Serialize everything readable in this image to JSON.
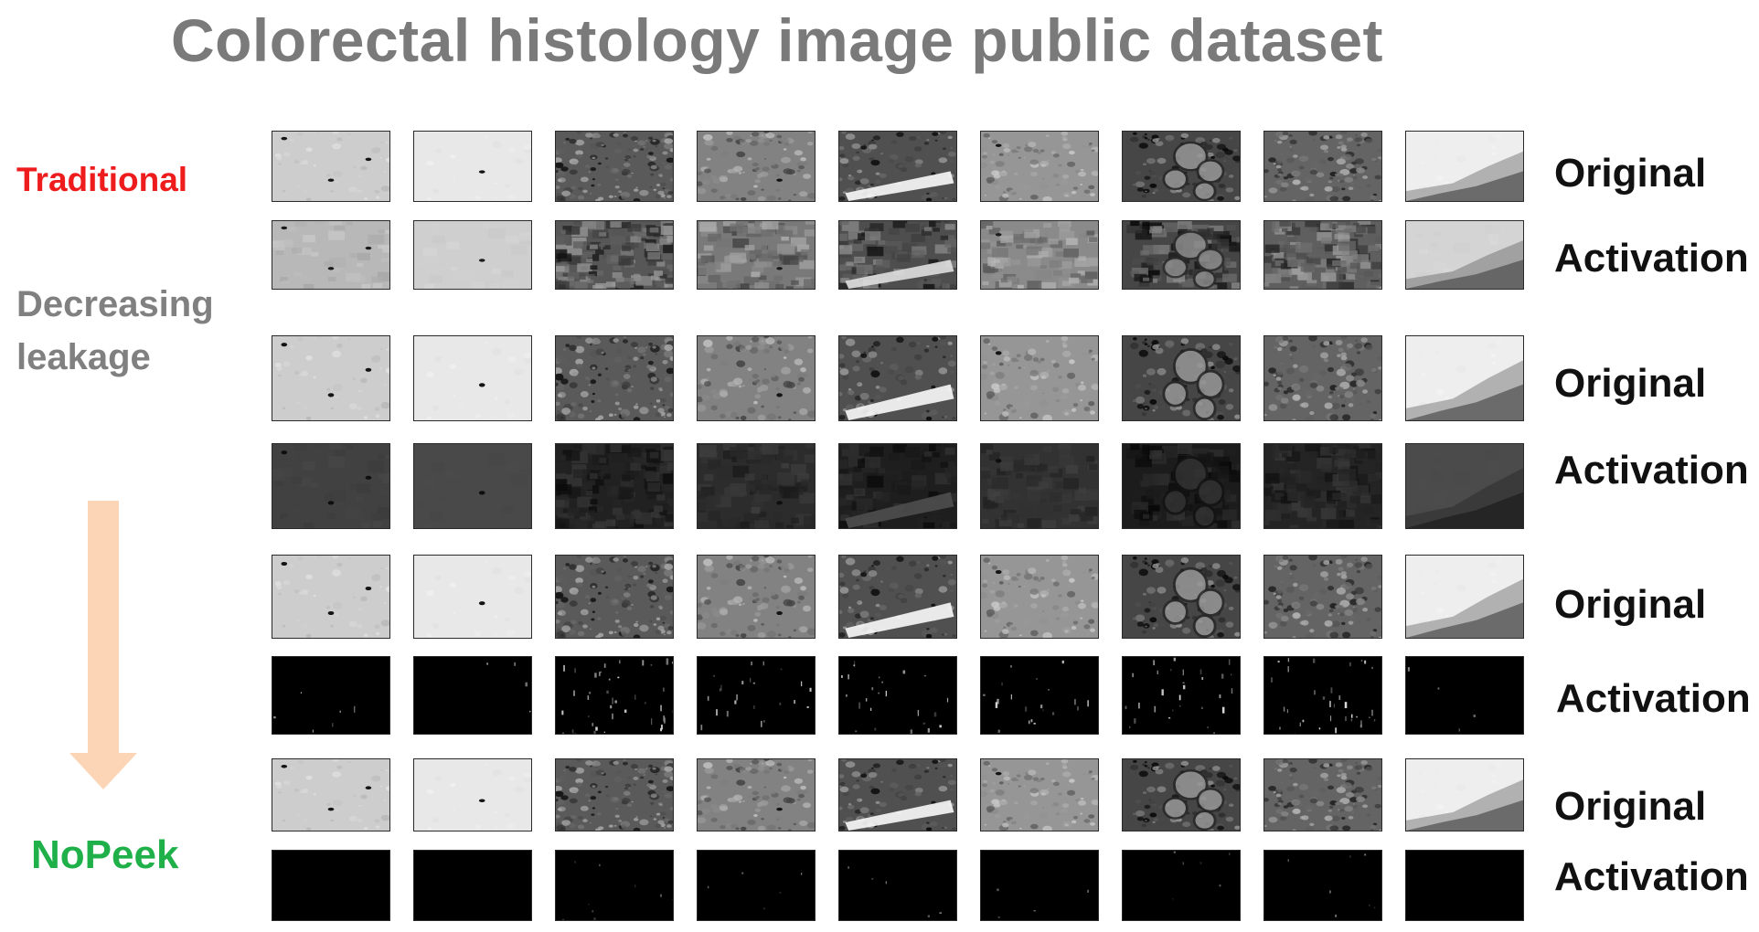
{
  "title": "Colorectal histology image public dataset",
  "side_labels": {
    "traditional": "Traditional",
    "decreasing_leakage": [
      "Decreasing",
      "leakage"
    ],
    "nopeek": "NoPeek"
  },
  "colors": {
    "title": "#7a7a7a",
    "traditional": "#ee1c1c",
    "decreasing_leakage": "#808080",
    "nopeek": "#1fb04a",
    "arrow": "#fbd5b5"
  },
  "row_labels": {
    "original": "Original",
    "activation": "Activation"
  },
  "rows": [
    {
      "kind": "original",
      "label": "Original"
    },
    {
      "kind": "activation",
      "label": "Activation",
      "level": "high"
    },
    {
      "kind": "original",
      "label": "Original"
    },
    {
      "kind": "activation",
      "label": "Activation",
      "level": "low"
    },
    {
      "kind": "original",
      "label": "Original"
    },
    {
      "kind": "activation",
      "label": "Activation",
      "level": "sparse"
    },
    {
      "kind": "original",
      "label": "Original"
    },
    {
      "kind": "activation",
      "label": "Activation",
      "level": "nearly-black"
    }
  ],
  "columns": 9
}
